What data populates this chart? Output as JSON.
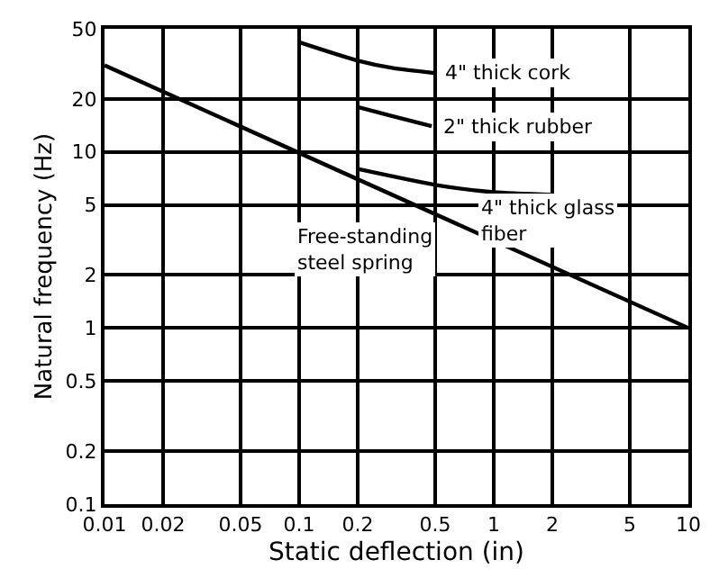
{
  "chart_data": {
    "type": "line",
    "xlabel": "Static deflection (in)",
    "ylabel": "Natural frequency (Hz)",
    "log": "xy",
    "grid": true,
    "marker": "none",
    "line_style": "solid",
    "xlim": [
      0.01,
      10
    ],
    "ylim": [
      0.1,
      50
    ],
    "xticks": [
      0.01,
      0.02,
      0.05,
      0.1,
      0.2,
      0.5,
      1,
      2,
      5,
      10
    ],
    "yticks": [
      0.1,
      0.2,
      0.5,
      1,
      2,
      5,
      10,
      20,
      50
    ],
    "series": [
      {
        "color": "#000000",
        "x": [
          0.01,
          10
        ],
        "values": [
          31,
          1
        ]
      },
      {
        "color": "#000000",
        "x": [
          0.1,
          0.2,
          0.3,
          0.5
        ],
        "values": [
          42,
          33,
          30,
          28
        ]
      },
      {
        "color": "#000000",
        "x": [
          0.2,
          0.3,
          0.48
        ],
        "values": [
          18,
          16,
          14
        ]
      },
      {
        "color": "#000000",
        "x": [
          0.2,
          0.5,
          1,
          2
        ],
        "values": [
          8,
          6.5,
          5.9,
          5.7
        ]
      }
    ],
    "annotations": [
      {
        "text": "4\" thick cork",
        "x": 0.5,
        "y": 28
      },
      {
        "text": "2\" thick rubber",
        "x": 0.48,
        "y": 14
      },
      {
        "text": "4\" thick glass\nfiber",
        "x": 0.75,
        "y": 6.2
      },
      {
        "text": "Free-standing\nsteel spring",
        "x": 0.55,
        "y": 4.2
      }
    ]
  }
}
